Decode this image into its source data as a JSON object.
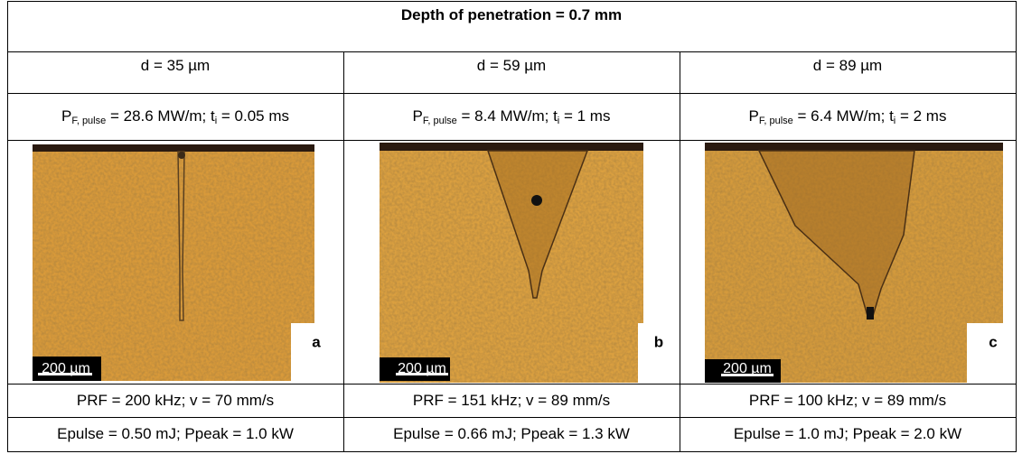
{
  "header": {
    "title": "Depth of penetration = 0.7 mm"
  },
  "columns": [
    {
      "diameter": "d = 35 µm",
      "power": {
        "symbol": "P",
        "subscript": "F, pulse",
        "text": " = 28.6 MW/m; t",
        "time_subscript": "i",
        "rest": " = 0.05 ms"
      },
      "image": {
        "scale": "200 µm",
        "label": "a"
      },
      "prf": "PRF = 200 kHz; v = 70 mm/s",
      "energy": "Epulse = 0.50 mJ; Ppeak = 1.0 kW"
    },
    {
      "diameter": "d = 59 µm",
      "power": {
        "symbol": "P",
        "subscript": "F, pulse",
        "text": " = 8.4 MW/m; t",
        "time_subscript": "i",
        "rest": " = 1 ms"
      },
      "image": {
        "scale": "200 µm",
        "label": "b"
      },
      "prf": "PRF = 151 kHz; v = 89 mm/s",
      "energy": "Epulse = 0.66 mJ; Ppeak = 1.3 kW"
    },
    {
      "diameter": "d = 89 µm",
      "power": {
        "symbol": "P",
        "subscript": "F, pulse",
        "text": " = 6.4 MW/m; t",
        "time_subscript": "i",
        "rest": " = 2 ms"
      },
      "image": {
        "scale": "200 µm",
        "label": "c"
      },
      "prf": "PRF = 100 kHz; v = 89 mm/s",
      "energy": "Epulse = 1.0 mJ; Ppeak = 2.0 kW"
    }
  ]
}
